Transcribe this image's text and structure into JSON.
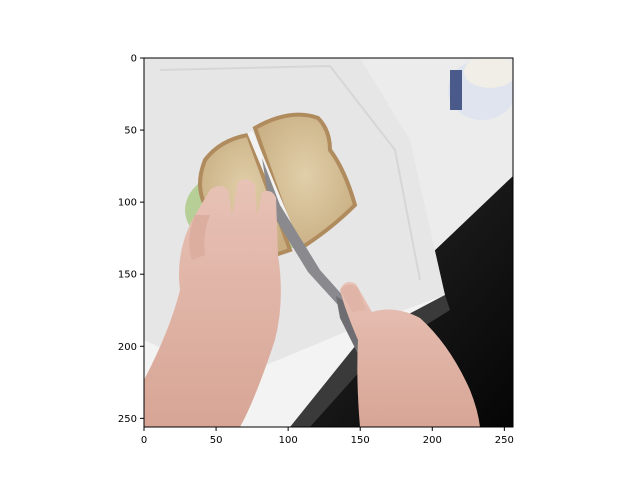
{
  "figure": {
    "xlim": [
      0,
      256
    ],
    "ylim": [
      256,
      0
    ],
    "x_ticks": [
      "0",
      "50",
      "100",
      "150",
      "200",
      "250"
    ],
    "y_ticks": [
      "0",
      "50",
      "100",
      "150",
      "200",
      "250"
    ]
  },
  "image": {
    "description_icon": "photo-sandwich-cutting",
    "colors": {
      "paper_towel": "#e9e9ea",
      "counter": "#f4f4f4",
      "bread": "#d7c29a",
      "crust": "#b8956a",
      "skin": "#e2b9ac",
      "dark": "#151515",
      "knife": "#8a8a8e"
    }
  }
}
